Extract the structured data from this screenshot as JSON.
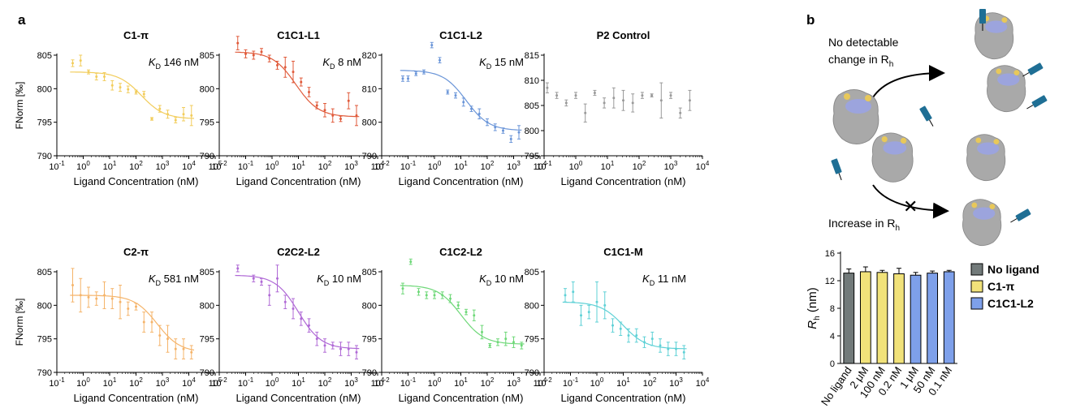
{
  "panel_labels": {
    "a": "a",
    "b": "b"
  },
  "shared": {
    "xlabel": "Ligand Concentration (nM)",
    "ylabel": "FNorm [‰]",
    "kd_symbol": "K",
    "kd_sub": "D"
  },
  "schematic": {
    "top_note": "No detectable",
    "top_note_2": "change in R",
    "top_note_sub": "h",
    "bottom_note": "Increase in R",
    "bottom_note_sub": "h",
    "protein_color": "#a9a9a9",
    "site_blue": "#9aa3e6",
    "site_yellow": "#e8c85a",
    "ligand_color": "#1f6f95"
  },
  "chart_data": [
    {
      "type": "scatter",
      "title": "C1-π",
      "kd": "146 nM",
      "color": "#f2cd5c",
      "xlim": [
        -1,
        5
      ],
      "ylim": [
        790,
        805
      ],
      "yticks": [
        790,
        795,
        800,
        805
      ],
      "xlabel": "Ligand Concentration (nM)",
      "ylabel": "FNorm [‰]",
      "fit": {
        "top": 802.5,
        "bottom": 795.5,
        "logkd": 2.2
      },
      "x": [
        -0.4,
        -0.1,
        0.2,
        0.5,
        0.8,
        1.1,
        1.4,
        1.7,
        2.0,
        2.3,
        2.6,
        2.9,
        3.2,
        3.5,
        3.8,
        4.1
      ],
      "y": [
        803.8,
        804.2,
        802.5,
        801.8,
        801.8,
        800.5,
        800.2,
        799.9,
        799.5,
        799.2,
        795.5,
        797.0,
        796.2,
        795.3,
        796.2,
        796.0
      ],
      "err": [
        0.5,
        0.8,
        0.3,
        0.5,
        0.6,
        0.7,
        0.6,
        0.5,
        0.3,
        0.4,
        0.2,
        0.5,
        0.6,
        0.4,
        1.0,
        1.5
      ]
    },
    {
      "type": "scatter",
      "title": "C1C1-L1",
      "kd": "8 nM",
      "color": "#e05a3a",
      "xlim": [
        -2,
        4
      ],
      "ylim": [
        790,
        805
      ],
      "yticks": [
        790,
        795,
        800,
        805
      ],
      "xlabel": "Ligand Concentration (nM)",
      "ylabel": "",
      "fit": {
        "top": 805.5,
        "bottom": 795.8,
        "logkd": 0.9
      },
      "x": [
        -1.3,
        -1.0,
        -0.7,
        -0.4,
        -0.1,
        0.2,
        0.5,
        0.8,
        1.1,
        1.4,
        1.7,
        2.0,
        2.3,
        2.6,
        2.9,
        3.2
      ],
      "y": [
        806.8,
        805.2,
        805.0,
        805.5,
        804.5,
        803.5,
        803.2,
        802.5,
        801.0,
        799.5,
        797.5,
        796.8,
        796.0,
        795.5,
        798.2,
        796.0
      ],
      "err": [
        1.0,
        0.6,
        0.6,
        0.5,
        0.5,
        0.6,
        1.5,
        1.6,
        0.6,
        0.7,
        0.5,
        1.0,
        1.0,
        0.4,
        1.2,
        1.5
      ]
    },
    {
      "type": "scatter",
      "title": "C1C1-L2",
      "kd": "15 nM",
      "color": "#6a95d8",
      "xlim": [
        -2,
        4
      ],
      "ylim": [
        790,
        820
      ],
      "yticks": [
        790,
        800,
        810,
        820
      ],
      "xlabel": "Ligand Concentration (nM)",
      "ylabel": "",
      "fit": {
        "top": 815.5,
        "bottom": 797.5,
        "logkd": 1.2
      },
      "x": [
        -1.2,
        -1.0,
        -0.7,
        -0.4,
        -0.1,
        0.2,
        0.5,
        0.8,
        1.1,
        1.4,
        1.7,
        2.0,
        2.3,
        2.6,
        2.9,
        3.2
      ],
      "y": [
        813.0,
        813.0,
        814.5,
        815.0,
        823.0,
        818.5,
        809.0,
        808.0,
        806.0,
        804.0,
        802.5,
        800.0,
        798.5,
        797.5,
        795.0,
        797.0
      ],
      "err": [
        0.8,
        0.8,
        0.6,
        0.6,
        0.8,
        0.8,
        0.6,
        0.8,
        1.2,
        0.8,
        1.5,
        1.0,
        1.0,
        0.8,
        1.0,
        2.0
      ]
    },
    {
      "type": "scatter",
      "title": "P2 Control",
      "kd": "",
      "color": "#9a9a9a",
      "xlim": [
        -1,
        4
      ],
      "ylim": [
        795,
        815
      ],
      "yticks": [
        795,
        800,
        805,
        810,
        815
      ],
      "xlabel": "Ligand Concentration (nM)",
      "ylabel": "",
      "fit": null,
      "x": [
        -0.9,
        -0.6,
        -0.3,
        0.0,
        0.3,
        0.6,
        0.9,
        1.2,
        1.5,
        1.8,
        2.1,
        2.4,
        2.7,
        3.0,
        3.3,
        3.6
      ],
      "y": [
        808.5,
        807.0,
        805.5,
        807.0,
        803.5,
        807.5,
        805.5,
        806.5,
        806.0,
        805.5,
        807.0,
        807.0,
        806.0,
        807.0,
        803.5,
        806.0
      ],
      "err": [
        1.0,
        0.6,
        0.6,
        0.6,
        1.8,
        0.5,
        1.0,
        2.0,
        2.0,
        1.8,
        0.6,
        0.3,
        3.5,
        0.6,
        1.0,
        2.0
      ]
    },
    {
      "type": "scatter",
      "title": "C2-π",
      "kd": "581 nM",
      "color": "#f5b46a",
      "xlim": [
        -1,
        5
      ],
      "ylim": [
        790,
        805
      ],
      "yticks": [
        790,
        795,
        800,
        805
      ],
      "xlabel": "Ligand Concentration (nM)",
      "ylabel": "FNorm [‰]",
      "fit": {
        "top": 801.5,
        "bottom": 793.0,
        "logkd": 2.8
      },
      "x": [
        -0.4,
        -0.1,
        0.2,
        0.5,
        0.8,
        1.1,
        1.4,
        1.7,
        2.0,
        2.3,
        2.6,
        2.9,
        3.2,
        3.5,
        3.8,
        4.1
      ],
      "y": [
        803.0,
        801.5,
        801.2,
        801.0,
        801.5,
        801.0,
        800.5,
        799.5,
        799.8,
        797.5,
        797.5,
        795.5,
        795.0,
        793.5,
        793.5,
        793.0
      ],
      "err": [
        2.5,
        2.5,
        1.5,
        1.0,
        2.0,
        1.5,
        2.5,
        1.0,
        0.5,
        1.5,
        1.5,
        1.5,
        2.0,
        1.5,
        1.5,
        1.0
      ]
    },
    {
      "type": "scatter",
      "title": "C2C2-L2",
      "kd": "10 nM",
      "color": "#b06ad6",
      "xlim": [
        -2,
        4
      ],
      "ylim": [
        790,
        805
      ],
      "yticks": [
        790,
        795,
        800,
        805
      ],
      "xlabel": "Ligand Concentration (nM)",
      "ylabel": "",
      "fit": {
        "top": 804.5,
        "bottom": 793.5,
        "logkd": 1.0
      },
      "x": [
        -1.3,
        -0.7,
        -0.4,
        -0.1,
        0.2,
        0.5,
        0.8,
        1.1,
        1.4,
        1.7,
        2.0,
        2.3,
        2.6,
        2.9,
        3.2
      ],
      "y": [
        805.5,
        804.0,
        803.5,
        801.5,
        804.0,
        800.5,
        799.5,
        798.0,
        797.0,
        795.0,
        794.0,
        794.0,
        793.5,
        793.5,
        793.0
      ],
      "err": [
        0.5,
        0.5,
        0.5,
        1.5,
        2.0,
        1.0,
        1.5,
        1.0,
        1.0,
        1.0,
        1.0,
        0.5,
        1.0,
        1.0,
        1.0
      ]
    },
    {
      "type": "scatter",
      "title": "C1C2-L2",
      "kd": "10 nM",
      "color": "#6ed878",
      "xlim": [
        -2,
        4
      ],
      "ylim": [
        790,
        805
      ],
      "yticks": [
        790,
        795,
        800,
        805
      ],
      "xlabel": "Ligand Concentration (nM)",
      "ylabel": "",
      "fit": {
        "top": 803.0,
        "bottom": 794.2,
        "logkd": 1.0
      },
      "x": [
        -1.2,
        -0.9,
        -0.6,
        -0.3,
        0.0,
        0.3,
        0.6,
        0.9,
        1.2,
        1.5,
        1.8,
        2.1,
        2.4,
        2.7,
        3.0,
        3.3
      ],
      "y": [
        802.5,
        806.5,
        802.0,
        801.5,
        801.5,
        801.5,
        801.0,
        800.0,
        799.0,
        798.5,
        796.0,
        794.0,
        794.5,
        795.0,
        794.5,
        794.0
      ],
      "err": [
        0.8,
        0.4,
        0.5,
        0.5,
        0.5,
        0.5,
        0.6,
        0.5,
        0.4,
        0.8,
        1.0,
        0.3,
        0.5,
        1.0,
        0.8,
        0.5
      ]
    },
    {
      "type": "scatter",
      "title": "C1C1-M",
      "kd": "11 nM",
      "color": "#5fd1d6",
      "xlim": [
        -2,
        4
      ],
      "ylim": [
        790,
        805
      ],
      "yticks": [
        790,
        795,
        800,
        805
      ],
      "xlabel": "Ligand Concentration (nM)",
      "ylabel": "",
      "fit": {
        "top": 800.5,
        "bottom": 793.5,
        "logkd": 1.0
      },
      "x": [
        -1.2,
        -0.9,
        -0.6,
        -0.3,
        0.0,
        0.3,
        0.6,
        0.9,
        1.2,
        1.5,
        1.8,
        2.1,
        2.4,
        2.7,
        3.0,
        3.3
      ],
      "y": [
        801.5,
        802.0,
        798.5,
        799.0,
        800.5,
        800.0,
        797.0,
        796.5,
        795.5,
        795.5,
        794.5,
        795.0,
        794.0,
        793.5,
        793.5,
        793.0
      ],
      "err": [
        1.0,
        1.5,
        1.5,
        1.0,
        3.0,
        2.0,
        1.0,
        1.0,
        1.0,
        1.0,
        0.8,
        1.0,
        1.0,
        1.0,
        1.0,
        1.0
      ]
    },
    {
      "type": "bar",
      "title": "",
      "ylabel": "R",
      "ylabel_sub": "h",
      "ylabel_unit": " (nm)",
      "ylim": [
        0,
        16
      ],
      "yticks": [
        0,
        4,
        8,
        12,
        16
      ],
      "categories": [
        "No ligand",
        "2 μM",
        "100 nM",
        "0.2 nM",
        "1 μM",
        "50 nM",
        "0.1 nM"
      ],
      "values": [
        13.1,
        13.3,
        13.2,
        13.0,
        12.8,
        13.1,
        13.3
      ],
      "err": [
        0.6,
        0.7,
        0.3,
        0.8,
        0.4,
        0.3,
        0.2
      ],
      "bar_colors": [
        "#727a7a",
        "#f1e27a",
        "#f1e27a",
        "#f1e27a",
        "#7ea0ea",
        "#7ea0ea",
        "#7ea0ea"
      ],
      "legend": [
        {
          "label": "No ligand",
          "color": "#727a7a"
        },
        {
          "label": "C1-π",
          "color": "#f1e27a"
        },
        {
          "label": "C1C1-L2",
          "color": "#7ea0ea"
        }
      ]
    }
  ]
}
